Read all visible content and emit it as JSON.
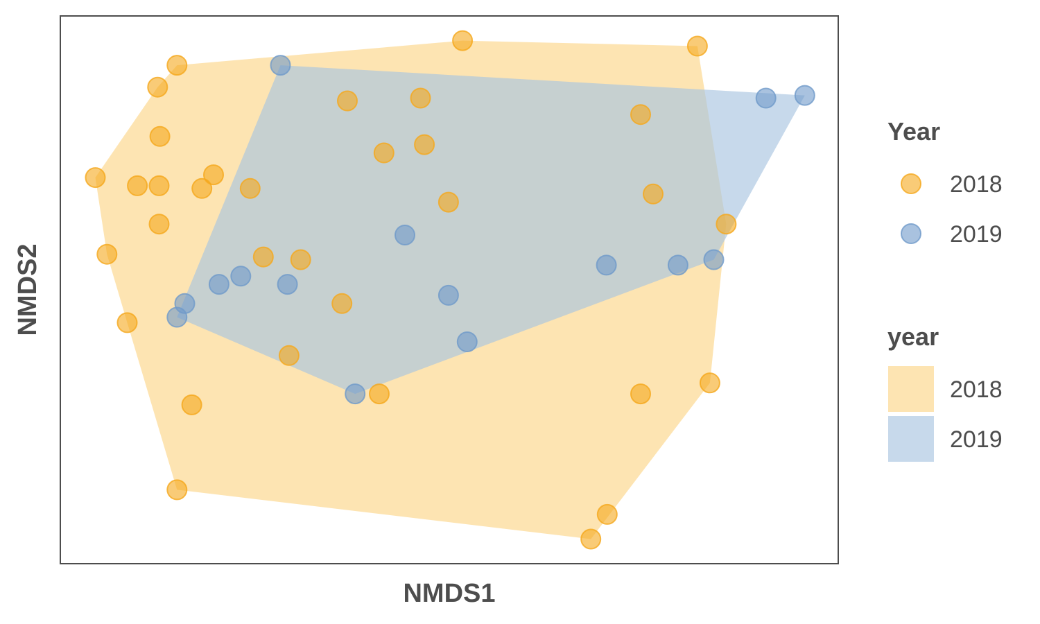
{
  "chart_data": {
    "type": "scatter",
    "xlabel": "NMDS1",
    "ylabel": "NMDS2",
    "xlim": [
      0,
      100
    ],
    "ylim": [
      0,
      100
    ],
    "grid": false,
    "legend_position": "right",
    "point_legend": {
      "title": "Year",
      "entries": [
        {
          "label": "2018",
          "color": "#F5A81C"
        },
        {
          "label": "2019",
          "color": "#6F9AC9"
        }
      ]
    },
    "hull_legend": {
      "title": "year",
      "entries": [
        {
          "label": "2018",
          "color": "#FCD588"
        },
        {
          "label": "2019",
          "color": "#A9C4E0"
        }
      ]
    },
    "series": [
      {
        "name": "2018",
        "color": "#F5A81C",
        "hull_color": "#FCD588",
        "points": [
          {
            "x": 15.0,
            "y": 91.0
          },
          {
            "x": 12.5,
            "y": 87.0
          },
          {
            "x": 12.8,
            "y": 78.0
          },
          {
            "x": 4.5,
            "y": 70.5
          },
          {
            "x": 9.9,
            "y": 69.0
          },
          {
            "x": 12.7,
            "y": 69.0
          },
          {
            "x": 19.7,
            "y": 71.0
          },
          {
            "x": 18.2,
            "y": 68.5
          },
          {
            "x": 24.4,
            "y": 68.5
          },
          {
            "x": 12.7,
            "y": 62.0
          },
          {
            "x": 6.0,
            "y": 56.5
          },
          {
            "x": 26.1,
            "y": 56.0
          },
          {
            "x": 30.9,
            "y": 55.5
          },
          {
            "x": 8.6,
            "y": 44.0
          },
          {
            "x": 36.2,
            "y": 47.5
          },
          {
            "x": 29.4,
            "y": 38.0
          },
          {
            "x": 41.0,
            "y": 31.0
          },
          {
            "x": 16.9,
            "y": 29.0
          },
          {
            "x": 15.0,
            "y": 13.5
          },
          {
            "x": 36.9,
            "y": 84.5
          },
          {
            "x": 46.3,
            "y": 85.0
          },
          {
            "x": 41.6,
            "y": 75.0
          },
          {
            "x": 46.8,
            "y": 76.5
          },
          {
            "x": 49.9,
            "y": 66.0
          },
          {
            "x": 51.7,
            "y": 95.5
          },
          {
            "x": 81.9,
            "y": 94.5
          },
          {
            "x": 74.6,
            "y": 82.0
          },
          {
            "x": 76.2,
            "y": 67.5
          },
          {
            "x": 85.6,
            "y": 62.0
          },
          {
            "x": 74.6,
            "y": 31.0
          },
          {
            "x": 83.5,
            "y": 33.0
          },
          {
            "x": 70.3,
            "y": 9.0
          },
          {
            "x": 68.2,
            "y": 4.5
          }
        ]
      },
      {
        "name": "2019",
        "color": "#6F9AC9",
        "hull_color": "#A9C4E0",
        "points": [
          {
            "x": 28.3,
            "y": 91.0
          },
          {
            "x": 90.7,
            "y": 85.0
          },
          {
            "x": 95.7,
            "y": 85.5
          },
          {
            "x": 44.3,
            "y": 60.0
          },
          {
            "x": 16.0,
            "y": 47.5
          },
          {
            "x": 15.0,
            "y": 45.0
          },
          {
            "x": 20.4,
            "y": 51.0
          },
          {
            "x": 23.2,
            "y": 52.5
          },
          {
            "x": 29.2,
            "y": 51.0
          },
          {
            "x": 49.9,
            "y": 49.0
          },
          {
            "x": 52.3,
            "y": 40.5
          },
          {
            "x": 37.9,
            "y": 31.0
          },
          {
            "x": 70.2,
            "y": 54.5
          },
          {
            "x": 79.4,
            "y": 54.5
          },
          {
            "x": 84.0,
            "y": 55.5
          }
        ]
      }
    ]
  }
}
